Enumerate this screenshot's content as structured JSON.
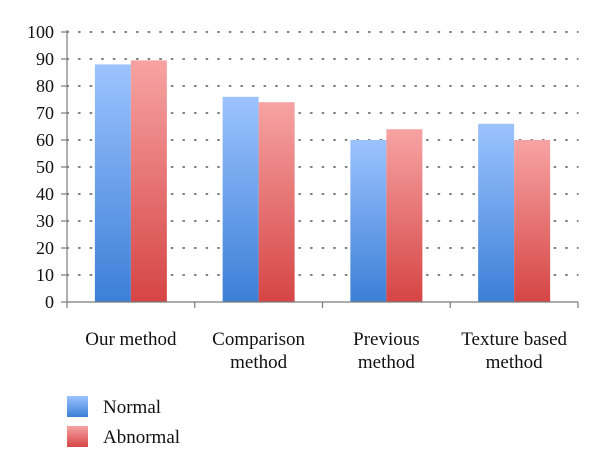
{
  "chart_data": {
    "type": "bar",
    "categories": [
      [
        "Our method"
      ],
      [
        "Comparison",
        "method"
      ],
      [
        "Previous",
        "method"
      ],
      [
        "Texture based",
        "method"
      ]
    ],
    "series": [
      {
        "name": "Normal",
        "values": [
          88,
          76,
          60,
          66
        ],
        "color_top": "#9cc3ff",
        "color_bottom": "#3c7fd6"
      },
      {
        "name": "Abnormal",
        "values": [
          89.5,
          74,
          64,
          60
        ],
        "color_top": "#f7a3a3",
        "color_bottom": "#d64545"
      }
    ],
    "yticks": [
      0,
      10,
      20,
      30,
      40,
      50,
      60,
      70,
      80,
      90,
      100
    ],
    "ylim": [
      0,
      100
    ],
    "grid": "dotted-horizontal",
    "legend_position": "bottom-left"
  }
}
